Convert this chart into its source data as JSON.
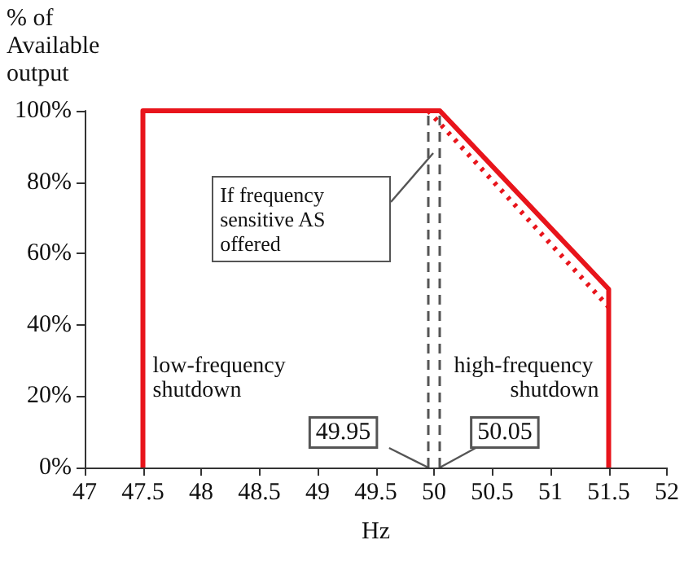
{
  "chart_data": {
    "type": "line",
    "ylabel": "% of Available output",
    "xlabel": "Hz",
    "xlim": [
      47,
      52
    ],
    "xticks": [
      47,
      47.5,
      48,
      48.5,
      49,
      49.5,
      50,
      50.5,
      51,
      51.5,
      52
    ],
    "ylim": [
      0,
      100
    ],
    "yticks": [
      {
        "value": 0,
        "label": "0%"
      },
      {
        "value": 20,
        "label": "20%"
      },
      {
        "value": 40,
        "label": "40%"
      },
      {
        "value": 60,
        "label": "60%"
      },
      {
        "value": 80,
        "label": "80%"
      },
      {
        "value": 100,
        "label": "100%"
      }
    ],
    "grid": false,
    "marker": "none",
    "series": [
      {
        "color": "#e8141b",
        "x": [
          47.5,
          47.5,
          50.05,
          51.5,
          51.5
        ],
        "values": [
          0,
          100,
          100,
          50,
          0
        ],
        "line_style": "solid"
      },
      {
        "color": "#e8141b",
        "x": [
          49.95,
          51.5
        ],
        "values": [
          100,
          45
        ],
        "line_style": "dotted"
      }
    ],
    "ref_lines": [
      {
        "axis": "x",
        "value": 49.95,
        "label": "49.95",
        "color": "#555555",
        "line_style": "dashed"
      },
      {
        "axis": "x",
        "value": 50.05,
        "label": "50.05",
        "color": "#555555",
        "line_style": "dashed"
      }
    ],
    "annotations": [
      "If frequency sensitive AS offered",
      {
        "text": "low-frequency shutdown",
        "x": 47.5,
        "y": 25
      },
      {
        "text": "high-frequency shutdown",
        "x": 51.5,
        "y": 25
      }
    ]
  }
}
